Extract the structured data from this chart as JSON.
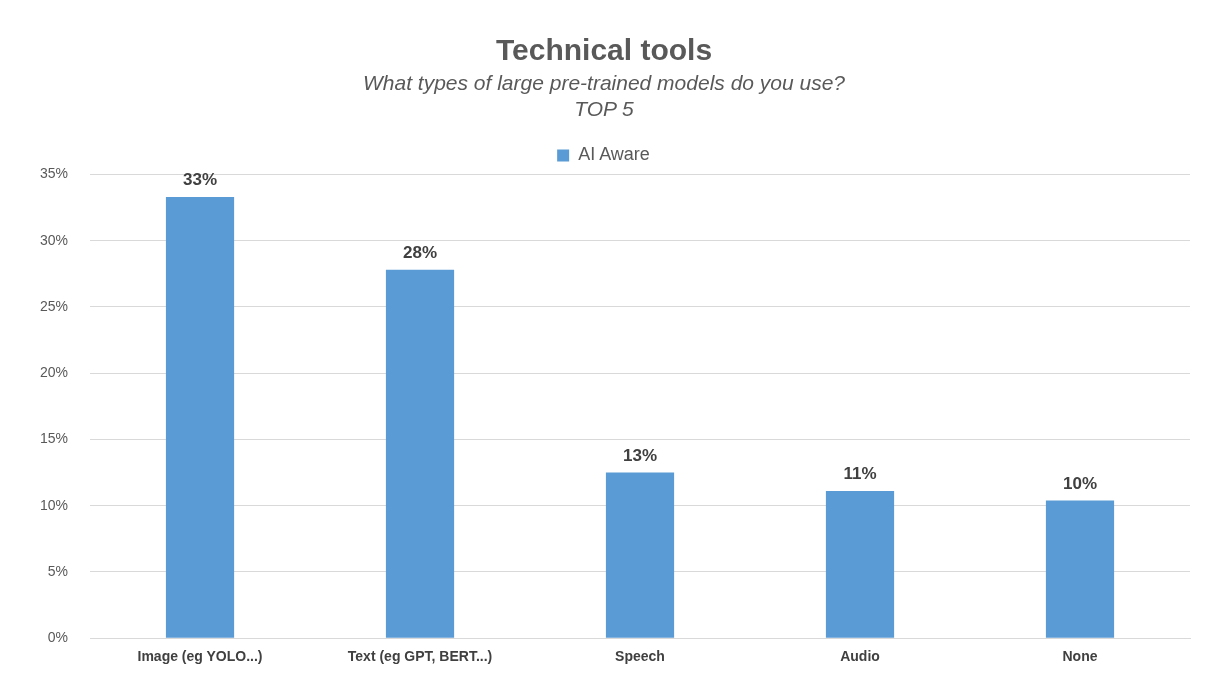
{
  "chart_data": {
    "type": "bar",
    "title": "Technical tools",
    "subtitle": "What types of large pre-trained models do you use?\nTOP 5",
    "categories": [
      "Image (eg YOLO...)",
      "Text (eg GPT, BERT...)",
      "Speech",
      "Audio",
      "None"
    ],
    "series": [
      {
        "name": "AI Aware",
        "color": "#5b9bd5",
        "values": [
          33.3,
          27.8,
          12.5,
          11.1,
          10.4
        ],
        "value_labels": [
          "33%",
          "28%",
          "13%",
          "11%",
          "10%"
        ]
      }
    ],
    "ylim": [
      0,
      35
    ],
    "yticks": [
      {
        "value": 0,
        "label": "0%"
      },
      {
        "value": 5,
        "label": "5%"
      },
      {
        "value": 10,
        "label": "10%"
      },
      {
        "value": 15,
        "label": "15%"
      },
      {
        "value": 20,
        "label": "20%"
      },
      {
        "value": 25,
        "label": "25%"
      },
      {
        "value": 30,
        "label": "30%"
      },
      {
        "value": 35,
        "label": "35%"
      }
    ],
    "grid": "y",
    "legend": "top"
  }
}
